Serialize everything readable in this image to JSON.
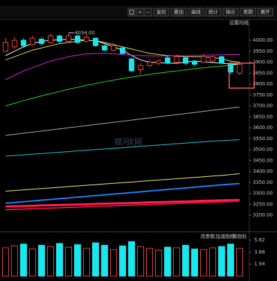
{
  "toolbar": {
    "buttons": [
      "复权",
      "叠加",
      "画线",
      "统计",
      "指示",
      "周期",
      "展开"
    ]
  },
  "panel_texts": {
    "ma_setting": "设置均线",
    "watermark": "银河E网",
    "volume_tools": [
      "改参数",
      "加减指标",
      "换指标"
    ]
  },
  "chart_data": {
    "type": "candlestick",
    "up_color": "#ff4a4a",
    "down_color": "#18e8ee",
    "open": [
      3950,
      3970,
      4000,
      3980,
      4005,
      3990,
      4020,
      3995,
      4020,
      3995,
      4010,
      3975,
      3955,
      3965,
      3915,
      3865,
      3885,
      3895,
      3920,
      3900,
      3920,
      3905,
      3900,
      3905,
      3925,
      3895,
      3850
    ],
    "close": [
      3990,
      4000,
      3975,
      4010,
      3985,
      4020,
      3995,
      4020,
      3990,
      4015,
      3975,
      3955,
      3975,
      3940,
      3860,
      3885,
      3900,
      3905,
      3895,
      3925,
      3895,
      3890,
      3925,
      3925,
      3895,
      3855,
      3890
    ],
    "high": [
      4010,
      4015,
      4010,
      4020,
      4015,
      4030,
      4025,
      4034,
      4025,
      4025,
      4012,
      3980,
      3985,
      3970,
      3920,
      3895,
      3910,
      3915,
      3930,
      3935,
      3925,
      3910,
      3935,
      3930,
      3930,
      3900,
      3900
    ],
    "low": [
      3945,
      3960,
      3965,
      3975,
      3975,
      3985,
      3985,
      3990,
      3985,
      3990,
      3970,
      3950,
      3950,
      3935,
      3855,
      3845,
      3875,
      3885,
      3890,
      3890,
      3885,
      3880,
      3895,
      3900,
      3890,
      3845,
      3840
    ],
    "ylim": [
      3169,
      4089
    ],
    "yticks": [
      {
        "value": 4000,
        "label": "4000.00"
      },
      {
        "value": 3950,
        "label": "3950.00"
      },
      {
        "value": 3900,
        "label": "3900.00"
      },
      {
        "value": 3850,
        "label": "3850.00"
      },
      {
        "value": 3800,
        "label": "3800.00"
      },
      {
        "value": 3750,
        "label": "3750.00"
      },
      {
        "value": 3700,
        "label": "3700.00"
      },
      {
        "value": 3650,
        "label": "3650.00"
      },
      {
        "value": 3600,
        "label": "3600.00"
      },
      {
        "value": 3550,
        "label": "3550.00"
      },
      {
        "value": 3500,
        "label": "3500.00"
      },
      {
        "value": 3450,
        "label": "3450.00"
      },
      {
        "value": 3400,
        "label": "3400.00"
      },
      {
        "value": 3350,
        "label": "3350.00"
      },
      {
        "value": 3300,
        "label": "3300.00"
      },
      {
        "value": 3250,
        "label": "3250.00"
      },
      {
        "value": 3200,
        "label": "3200.00"
      }
    ],
    "annotation": {
      "label": "4034.00",
      "value": 4034
    },
    "lines": [
      {
        "color": "#ffffff",
        "width": 1,
        "values": [
          3930,
          3950,
          3970,
          3985,
          3995,
          4000,
          4002,
          4005,
          4003,
          4000,
          3998,
          3985,
          3970,
          3955,
          3930,
          3910,
          3900,
          3898,
          3895,
          3895,
          3900,
          3905,
          3902,
          3898,
          3895,
          3892,
          3890
        ]
      },
      {
        "color": "#e8e060",
        "width": 1,
        "values": [
          3910,
          3925,
          3940,
          3955,
          3965,
          3975,
          3985,
          3990,
          3995,
          4000,
          3998,
          3990,
          3980,
          3970,
          3960,
          3950,
          3940,
          3935,
          3930,
          3928,
          3925,
          3925,
          3925,
          3922,
          3915,
          3905,
          3900
        ]
      },
      {
        "color": "#e020e0",
        "width": 1,
        "values": [
          3820,
          3840,
          3860,
          3875,
          3890,
          3905,
          3915,
          3925,
          3932,
          3938,
          3940,
          3940,
          3938,
          3935,
          3932,
          3930,
          3928,
          3928,
          3928,
          3929,
          3930,
          3931,
          3932,
          3933,
          3934,
          3935,
          3935
        ]
      },
      {
        "color": "#20e020",
        "width": 1,
        "values": [
          3700,
          3712,
          3724,
          3735,
          3746,
          3756,
          3766,
          3776,
          3785,
          3794,
          3802,
          3810,
          3818,
          3825,
          3832,
          3838,
          3844,
          3850,
          3855,
          3860,
          3865,
          3870,
          3874,
          3878,
          3882,
          3886,
          3890
        ]
      },
      {
        "color": "#b0b0b0",
        "width": 1,
        "values": [
          3565,
          3570,
          3575,
          3580,
          3585,
          3590,
          3595,
          3600,
          3605,
          3610,
          3615,
          3620,
          3625,
          3630,
          3635,
          3640,
          3645,
          3650,
          3655,
          3660,
          3665,
          3670,
          3675,
          3680,
          3685,
          3690,
          3695
        ]
      },
      {
        "color": "#20c8d8",
        "width": 1,
        "values": [
          3470,
          3473,
          3476,
          3479,
          3482,
          3485,
          3488,
          3491,
          3494,
          3497,
          3500,
          3503,
          3506,
          3509,
          3512,
          3515,
          3518,
          3521,
          3524,
          3527,
          3530,
          3533,
          3536,
          3539,
          3541,
          3543,
          3545
        ]
      },
      {
        "color": "#f0f080",
        "width": 1,
        "values": [
          3310,
          3313,
          3316,
          3319,
          3322,
          3325,
          3328,
          3331,
          3334,
          3337,
          3340,
          3343,
          3346,
          3349,
          3352,
          3355,
          3358,
          3361,
          3364,
          3367,
          3370,
          3373,
          3376,
          3379,
          3382,
          3386,
          3390
        ]
      },
      {
        "color": "#2080ff",
        "width": 2,
        "values": [
          3255,
          3258,
          3262,
          3265,
          3269,
          3272,
          3276,
          3279,
          3283,
          3286,
          3290,
          3293,
          3297,
          3300,
          3304,
          3307,
          3311,
          3314,
          3318,
          3321,
          3325,
          3328,
          3332,
          3335,
          3339,
          3342,
          3345
        ]
      },
      {
        "color": "#ff2050",
        "width": 3,
        "values": [
          3240,
          3241,
          3242,
          3243,
          3245,
          3246,
          3247,
          3248,
          3249,
          3250,
          3252,
          3253,
          3254,
          3255,
          3256,
          3257,
          3259,
          3260,
          3261,
          3262,
          3263,
          3264,
          3266,
          3267,
          3268,
          3269,
          3270
        ]
      },
      {
        "color": "#e01040",
        "width": 2,
        "values": [
          3225,
          3227,
          3228,
          3230,
          3231,
          3233,
          3234,
          3236,
          3237,
          3239,
          3240,
          3242,
          3243,
          3245,
          3246,
          3248,
          3249,
          3251,
          3252,
          3254,
          3255,
          3257,
          3258,
          3260,
          3261,
          3263,
          3265
        ]
      }
    ],
    "volume": {
      "values": [
        4.6,
        4.9,
        5.2,
        4.4,
        5.0,
        4.8,
        5.3,
        4.7,
        5.1,
        4.5,
        5.4,
        5.0,
        4.3,
        4.9,
        5.6,
        4.8,
        4.5,
        4.2,
        4.7,
        4.6,
        5.0,
        4.4,
        4.3,
        4.6,
        4.8,
        5.2,
        4.5
      ],
      "ylim": [
        0,
        6.74
      ],
      "yticks": [
        5.82,
        3.88,
        1.94
      ]
    }
  }
}
